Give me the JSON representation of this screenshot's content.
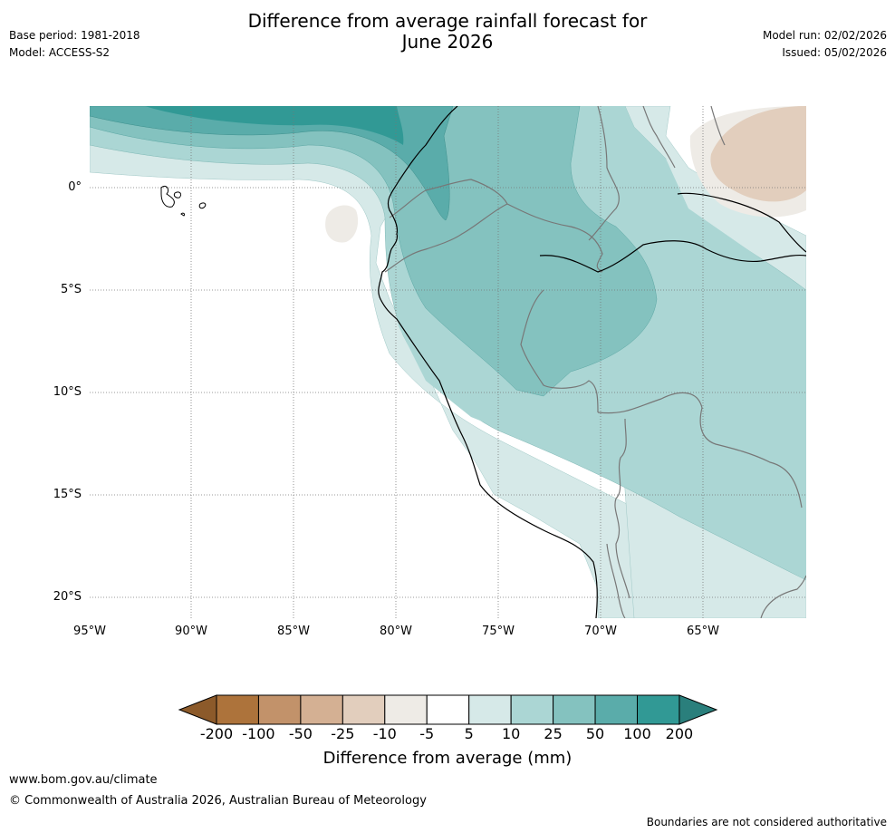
{
  "header": {
    "title_line1": "Difference from average rainfall forecast for",
    "title_line2": "June 2026",
    "base_period": "Base period: 1981-2018",
    "model": "Model: ACCESS-S2",
    "model_run": "Model run: 02/02/2026",
    "issued": "Issued: 05/02/2026"
  },
  "map": {
    "lat_labels": [
      "0°",
      "5°S",
      "10°S",
      "15°S",
      "20°S"
    ],
    "lon_labels": [
      "95°W",
      "90°W",
      "85°W",
      "80°W",
      "75°W",
      "70°W",
      "65°W"
    ]
  },
  "colorbar": {
    "tick_labels": [
      "-200",
      "-100",
      "-50",
      "-25",
      "-10",
      "-5",
      "5",
      "10",
      "25",
      "50",
      "100",
      "200"
    ],
    "colors": [
      "#8c5a2a",
      "#ad733b",
      "#c2926a",
      "#d4b093",
      "#e2cebd",
      "#eeebe6",
      "#ffffff",
      "#d6e9e8",
      "#abd6d4",
      "#84c2bf",
      "#5aacaa",
      "#319995",
      "#2a7f7c"
    ],
    "label": "Difference from average (mm)"
  },
  "footer": {
    "url": "www.bom.gov.au/climate",
    "copyright": "© Commonwealth of Australia 2026, Australian Bureau of Meteorology",
    "disclaimer": "Boundaries are not considered authoritative"
  }
}
